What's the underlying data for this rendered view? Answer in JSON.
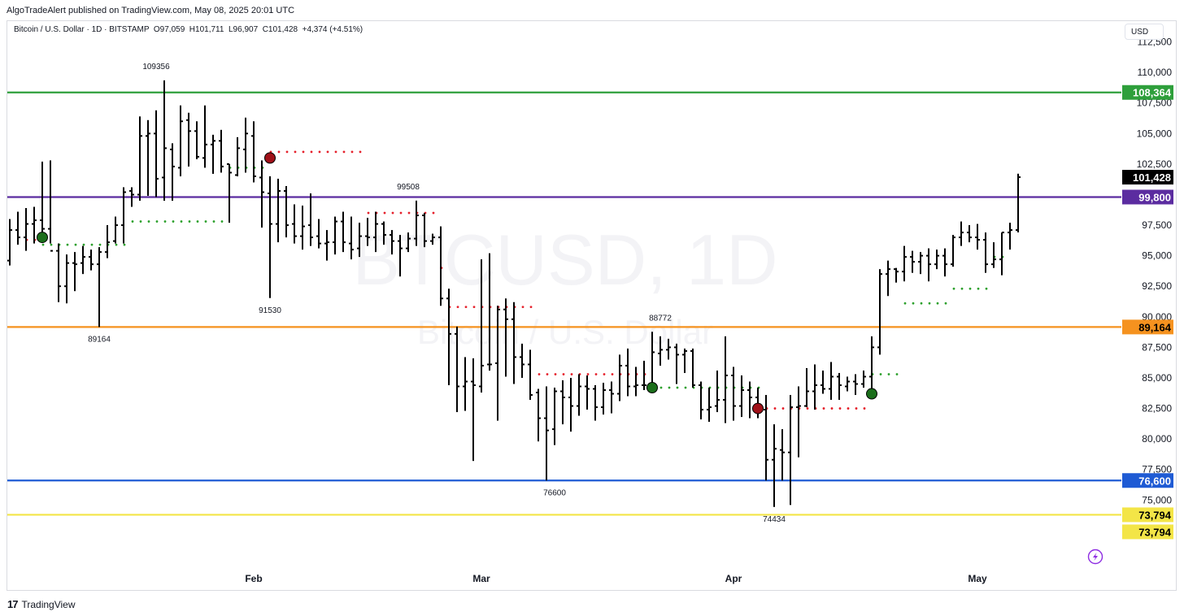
{
  "header": {
    "publisher_line": "AlgoTradeAlert published on TradingView.com, May 08, 2025 20:01 UTC",
    "symbol_line": "Bitcoin / U.S. Dollar · 1D · BITSTAMP  O97,059  H101,711  L96,907  C101,428  +4,374 (+4.51%)",
    "currency_button": "USD"
  },
  "watermark": {
    "symbol": "BTCUSD, 1D",
    "description": "Bitcoin / U.S. Dollar"
  },
  "footer": {
    "logo_text": "TradingView",
    "logo_mark": "17"
  },
  "colors": {
    "bar": "#000000",
    "support_dot": "#2ca02c",
    "resistance_dot": "#e5202b",
    "signal_buy": "#1b6e1b",
    "signal_sell": "#a01018",
    "level_green": "#2e9f3b",
    "level_purple": "#5b2ca0",
    "level_orange": "#f5921f",
    "level_blue": "#1f5bd4",
    "level_yellow": "#f3e547"
  },
  "chart_data": {
    "type": "ohlc",
    "x_range": [
      0,
      134
    ],
    "y_range": [
      69500,
      114200
    ],
    "y_ticks": [
      "75,000",
      "77,500",
      "80,000",
      "82,500",
      "85,000",
      "87,500",
      "90,000",
      "92,500",
      "95,000",
      "97,500",
      "102,500",
      "105,000",
      "107,500",
      "110,000",
      "112,500"
    ],
    "y_tick_values": [
      75000,
      77500,
      80000,
      82500,
      85000,
      87500,
      90000,
      92500,
      95000,
      97500,
      102500,
      105000,
      107500,
      110000,
      112500
    ],
    "x_labels": [
      {
        "label": "Feb",
        "x": 30
      },
      {
        "label": "Mar",
        "x": 58
      },
      {
        "label": "Apr",
        "x": 89
      },
      {
        "label": "May",
        "x": 119
      }
    ],
    "levels": [
      {
        "value": 108364,
        "label": "108,364",
        "color": "#2e9f3b"
      },
      {
        "value": 99800,
        "label": "99,800",
        "color": "#5b2ca0"
      },
      {
        "value": 89164,
        "label": "89,164",
        "color": "#f5921f"
      },
      {
        "value": 76600,
        "label": "76,600",
        "color": "#1f5bd4"
      },
      {
        "value": 73794,
        "label": "73,794",
        "color": "#f3e547"
      }
    ],
    "extra_price_labels": [
      {
        "value": 73794,
        "label": "73,794",
        "bg": "#f3e547",
        "fg": "#000000",
        "offset": 21
      },
      {
        "value": 101428,
        "label": "101,428",
        "bg": "#000000",
        "fg": "#ffffff",
        "offset": 0
      }
    ],
    "annotations": [
      {
        "label": "109356",
        "x": 18,
        "y": 109356,
        "pos": "above"
      },
      {
        "label": "89164",
        "x": 11,
        "y": 89164,
        "pos": "below"
      },
      {
        "label": "91530",
        "x": 32,
        "y": 91530,
        "pos": "below"
      },
      {
        "label": "99508",
        "x": 49,
        "y": 99508,
        "pos": "above"
      },
      {
        "label": "76600",
        "x": 67,
        "y": 76600,
        "pos": "below"
      },
      {
        "label": "88772",
        "x": 80,
        "y": 88772,
        "pos": "above"
      },
      {
        "label": "74434",
        "x": 94,
        "y": 74434,
        "pos": "below"
      }
    ],
    "dot_lines": [
      {
        "kind": "resistance",
        "x0": 2,
        "x1": 4,
        "y": 96300
      },
      {
        "kind": "support",
        "x0": 4,
        "x1": 14,
        "y": 95900
      },
      {
        "kind": "support",
        "x0": 15,
        "x1": 26,
        "y": 97800
      },
      {
        "kind": "support",
        "x0": 27,
        "x1": 31,
        "y": 102200
      },
      {
        "kind": "resistance",
        "x0": 32,
        "x1": 43,
        "y": 103500
      },
      {
        "kind": "resistance",
        "x0": 44,
        "x1": 52,
        "y": 98500
      },
      {
        "kind": "resistance",
        "x0": 53,
        "x1": 53,
        "y": 94000
      },
      {
        "kind": "resistance",
        "x0": 54,
        "x1": 64,
        "y": 90800
      },
      {
        "kind": "resistance",
        "x0": 65,
        "x1": 78,
        "y": 85300
      },
      {
        "kind": "support",
        "x0": 79,
        "x1": 92,
        "y": 84200
      },
      {
        "kind": "resistance",
        "x0": 93,
        "x1": 105,
        "y": 82500
      },
      {
        "kind": "support",
        "x0": 106,
        "x1": 109,
        "y": 85300
      },
      {
        "kind": "support",
        "x0": 110,
        "x1": 115,
        "y": 91100
      },
      {
        "kind": "support",
        "x0": 116,
        "x1": 120,
        "y": 92300
      },
      {
        "kind": "support",
        "x0": 121,
        "x1": 122,
        "y": 94900
      }
    ],
    "signals": [
      {
        "type": "buy",
        "x": 4,
        "y": 96500
      },
      {
        "type": "sell",
        "x": 32,
        "y": 103000
      },
      {
        "type": "buy",
        "x": 79,
        "y": 84200
      },
      {
        "type": "sell",
        "x": 92,
        "y": 82500
      },
      {
        "type": "buy",
        "x": 106,
        "y": 83700
      }
    ],
    "bars": [
      [
        94600,
        98000,
        94200,
        97100
      ],
      [
        97100,
        98600,
        95900,
        96500
      ],
      [
        96500,
        98900,
        95400,
        97600
      ],
      [
        97600,
        99000,
        96000,
        97900
      ],
      [
        97900,
        102700,
        96100,
        97200
      ],
      [
        97200,
        102800,
        96000,
        95400
      ],
      [
        95400,
        96000,
        91200,
        92500
      ],
      [
        92500,
        95100,
        91100,
        94400
      ],
      [
        94400,
        95300,
        92100,
        94300
      ],
      [
        94400,
        95800,
        93500,
        94900
      ],
      [
        94900,
        95500,
        93800,
        94300
      ],
      [
        94300,
        95700,
        89164,
        95300
      ],
      [
        95300,
        97500,
        94800,
        96100
      ],
      [
        96200,
        98200,
        96000,
        97500
      ],
      [
        97500,
        100600,
        96000,
        100200
      ],
      [
        100300,
        100600,
        99000,
        100000
      ],
      [
        100000,
        106400,
        99500,
        104800
      ],
      [
        104800,
        106100,
        99900,
        105000
      ],
      [
        105000,
        106900,
        99800,
        101300
      ],
      [
        101400,
        109356,
        99500,
        103800
      ],
      [
        103700,
        104200,
        99500,
        102300
      ],
      [
        102200,
        107300,
        101500,
        106000
      ],
      [
        106100,
        106700,
        102300,
        105200
      ],
      [
        105200,
        106000,
        102900,
        103100
      ],
      [
        103000,
        107300,
        102200,
        104100
      ],
      [
        104100,
        104900,
        101700,
        104400
      ],
      [
        104400,
        105300,
        101800,
        102300
      ],
      [
        102500,
        102500,
        97700,
        101800
      ],
      [
        101600,
        104700,
        101500,
        103800
      ],
      [
        103700,
        106300,
        101800,
        105000
      ],
      [
        104800,
        106000,
        101000,
        101500
      ],
      [
        101400,
        102800,
        97300,
        100200
      ],
      [
        100100,
        101500,
        91530,
        97600
      ],
      [
        97600,
        101300,
        96100,
        100300
      ],
      [
        100300,
        100700,
        96500,
        97500
      ],
      [
        97600,
        99200,
        96000,
        96600
      ],
      [
        96600,
        99100,
        95500,
        97400
      ],
      [
        97500,
        100100,
        95800,
        96500
      ],
      [
        96600,
        98000,
        95600,
        96000
      ],
      [
        96000,
        97100,
        94600,
        96100
      ],
      [
        96100,
        98200,
        95100,
        97800
      ],
      [
        97800,
        98600,
        95300,
        96100
      ],
      [
        96000,
        98200,
        94700,
        95500
      ],
      [
        95600,
        97700,
        94900,
        96600
      ],
      [
        96600,
        98100,
        95800,
        96500
      ],
      [
        96500,
        98600,
        95300,
        97600
      ],
      [
        97600,
        97800,
        95900,
        96700
      ],
      [
        96700,
        97100,
        95100,
        96200
      ],
      [
        96200,
        96700,
        93300,
        95600
      ],
      [
        95600,
        96900,
        95300,
        96400
      ],
      [
        96400,
        99508,
        95800,
        98300
      ],
      [
        98300,
        98500,
        95700,
        96200
      ],
      [
        96200,
        96800,
        95900,
        96500
      ],
      [
        96500,
        97400,
        90900,
        91500
      ],
      [
        91500,
        92300,
        84400,
        88600
      ],
      [
        88600,
        89200,
        82200,
        84300
      ],
      [
        84300,
        86700,
        82300,
        84700
      ],
      [
        84700,
        86600,
        78200,
        84400
      ],
      [
        84300,
        94700,
        83800,
        86000
      ],
      [
        86100,
        95200,
        85600,
        86100
      ],
      [
        86200,
        90900,
        81500,
        90600
      ],
      [
        90600,
        91500,
        85100,
        89800
      ],
      [
        89800,
        91200,
        84500,
        86700
      ],
      [
        86700,
        87800,
        85000,
        86100
      ],
      [
        86100,
        87300,
        83200,
        83600
      ],
      [
        83800,
        84100,
        79800,
        81700
      ],
      [
        81700,
        84300,
        76600,
        80700
      ],
      [
        80800,
        84200,
        79500,
        83900
      ],
      [
        83900,
        84800,
        81200,
        83400
      ],
      [
        83400,
        85000,
        80600,
        82700
      ],
      [
        82700,
        85300,
        81900,
        84300
      ],
      [
        84300,
        85200,
        82400,
        84100
      ],
      [
        84100,
        84400,
        81500,
        82600
      ],
      [
        82600,
        84600,
        82000,
        84000
      ],
      [
        84000,
        84700,
        82100,
        83700
      ],
      [
        83700,
        86900,
        83100,
        86000
      ],
      [
        86000,
        87400,
        83500,
        84300
      ],
      [
        84300,
        85900,
        83500,
        84400
      ],
      [
        84400,
        86400,
        84000,
        84400
      ],
      [
        84400,
        88772,
        84100,
        87100
      ],
      [
        87000,
        88400,
        86000,
        87300
      ],
      [
        87300,
        88200,
        86500,
        87500
      ],
      [
        87500,
        87800,
        84500,
        86900
      ],
      [
        86900,
        87400,
        85400,
        87200
      ],
      [
        87200,
        87400,
        84200,
        84400
      ],
      [
        84400,
        84700,
        81600,
        82400
      ],
      [
        82400,
        84200,
        81400,
        82600
      ],
      [
        82700,
        85600,
        82200,
        83200
      ],
      [
        83200,
        88400,
        81300,
        85200
      ],
      [
        85200,
        85900,
        81500,
        82700
      ],
      [
        82700,
        85200,
        81800,
        84000
      ],
      [
        84000,
        84700,
        81700,
        83400
      ],
      [
        83400,
        84200,
        81700,
        82500
      ],
      [
        82400,
        83600,
        76600,
        78300
      ],
      [
        78300,
        81200,
        74434,
        79200
      ],
      [
        79100,
        80800,
        76600,
        78900
      ],
      [
        78900,
        83600,
        74600,
        82600
      ],
      [
        82600,
        84300,
        78500,
        82700
      ],
      [
        82700,
        85800,
        82600,
        83900
      ],
      [
        83900,
        86100,
        82400,
        84400
      ],
      [
        84400,
        85600,
        83700,
        84100
      ],
      [
        84100,
        86300,
        83200,
        85100
      ],
      [
        85100,
        85400,
        83200,
        84400
      ],
      [
        84300,
        85100,
        83900,
        84700
      ],
      [
        84700,
        85300,
        83600,
        84500
      ],
      [
        84500,
        85600,
        84200,
        85100
      ],
      [
        85100,
        88400,
        84100,
        87500
      ],
      [
        87500,
        93900,
        86900,
        93500
      ],
      [
        93500,
        94600,
        91700,
        93900
      ],
      [
        93900,
        94000,
        92800,
        93700
      ],
      [
        93700,
        95800,
        92900,
        94900
      ],
      [
        94900,
        95400,
        93600,
        94500
      ],
      [
        94500,
        95300,
        93500,
        95000
      ],
      [
        95000,
        95600,
        92900,
        94300
      ],
      [
        94300,
        95500,
        93900,
        95000
      ],
      [
        95000,
        95600,
        93300,
        94300
      ],
      [
        94300,
        96700,
        94100,
        96500
      ],
      [
        96500,
        97800,
        95800,
        96900
      ],
      [
        96900,
        97500,
        96100,
        96500
      ],
      [
        96500,
        97600,
        95500,
        96300
      ],
      [
        96300,
        96900,
        93600,
        94300
      ],
      [
        94300,
        96100,
        94000,
        94700
      ],
      [
        94700,
        96900,
        93400,
        96900
      ],
      [
        96900,
        97700,
        95500,
        97100
      ],
      [
        97100,
        101711,
        96907,
        101428
      ]
    ]
  }
}
